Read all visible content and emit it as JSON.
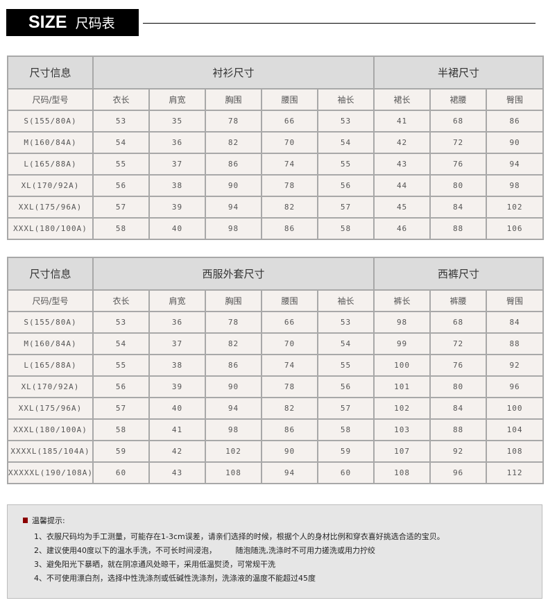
{
  "banner": {
    "title_en": "SIZE",
    "title_zh": "尺码表"
  },
  "tables": [
    {
      "info_label": "尺寸信息",
      "groups": [
        {
          "title": "衬衫尺寸",
          "span": 5
        },
        {
          "title": "半裙尺寸",
          "span": 3
        }
      ],
      "columns": [
        "尺码/型号",
        "衣长",
        "肩宽",
        "胸围",
        "腰围",
        "袖长",
        "裙长",
        "裙腰",
        "臀围"
      ],
      "rows": [
        [
          "S(155/80A)",
          "53",
          "35",
          "78",
          "66",
          "53",
          "41",
          "68",
          "86"
        ],
        [
          "M(160/84A)",
          "54",
          "36",
          "82",
          "70",
          "54",
          "42",
          "72",
          "90"
        ],
        [
          "L(165/88A)",
          "55",
          "37",
          "86",
          "74",
          "55",
          "43",
          "76",
          "94"
        ],
        [
          "XL(170/92A)",
          "56",
          "38",
          "90",
          "78",
          "56",
          "44",
          "80",
          "98"
        ],
        [
          "XXL(175/96A)",
          "57",
          "39",
          "94",
          "82",
          "57",
          "45",
          "84",
          "102"
        ],
        [
          "XXXL(180/100A)",
          "58",
          "40",
          "98",
          "86",
          "58",
          "46",
          "88",
          "106"
        ]
      ]
    },
    {
      "info_label": "尺寸信息",
      "groups": [
        {
          "title": "西服外套尺寸",
          "span": 5
        },
        {
          "title": "西裤尺寸",
          "span": 3
        }
      ],
      "columns": [
        "尺码/型号",
        "衣长",
        "肩宽",
        "胸围",
        "腰围",
        "袖长",
        "裤长",
        "裤腰",
        "臀围"
      ],
      "rows": [
        [
          "S(155/80A)",
          "53",
          "36",
          "78",
          "66",
          "53",
          "98",
          "68",
          "84"
        ],
        [
          "M(160/84A)",
          "54",
          "37",
          "82",
          "70",
          "54",
          "99",
          "72",
          "88"
        ],
        [
          "L(165/88A)",
          "55",
          "38",
          "86",
          "74",
          "55",
          "100",
          "76",
          "92"
        ],
        [
          "XL(170/92A)",
          "56",
          "39",
          "90",
          "78",
          "56",
          "101",
          "80",
          "96"
        ],
        [
          "XXL(175/96A)",
          "57",
          "40",
          "94",
          "82",
          "57",
          "102",
          "84",
          "100"
        ],
        [
          "XXXL(180/100A)",
          "58",
          "41",
          "98",
          "86",
          "58",
          "103",
          "88",
          "104"
        ],
        [
          "XXXXL(185/104A)",
          "59",
          "42",
          "102",
          "90",
          "59",
          "107",
          "92",
          "108"
        ],
        [
          "XXXXXL(190/108A)",
          "60",
          "43",
          "108",
          "94",
          "60",
          "108",
          "96",
          "112"
        ]
      ]
    }
  ],
  "tips": {
    "title": "温馨提示:",
    "lines": [
      "1、衣服尺码均为手工测量，可能存在1-3cm误差，请亲们选择的时候，根据个人的身材比例和穿衣喜好挑选合适的宝贝。",
      "2、建议使用40度以下的温水手洗，不可长时间浸泡，　　　随泡随洗,洗涤时不可用力搓洗或用力拧绞",
      "3、避免阳光下暴晒，就在阴凉通风处晾干，采用低温熨烫，可常规干洗",
      "4、不可使用漂白剂，选择中性洗涤剂或低碱性洗涤剂，洗涤液的温度不能超过45度"
    ]
  },
  "colors": {
    "header_bg": "#dcdcdc",
    "cell_bg": "#f5f1ee",
    "border": "#a8a8a8",
    "tip_marker": "#8b0000"
  }
}
